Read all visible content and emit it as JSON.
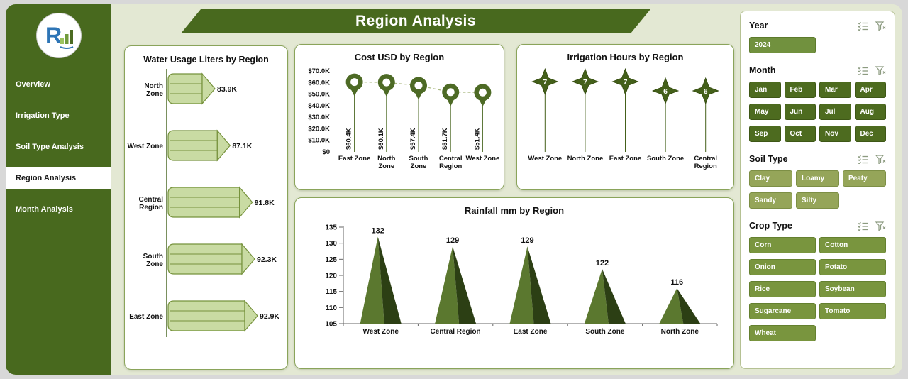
{
  "page": {
    "title": "Region Analysis"
  },
  "sidebar": {
    "items": [
      {
        "label": "Overview",
        "active": false
      },
      {
        "label": "Irrigation Type",
        "active": false
      },
      {
        "label": "Soil Type Analysis",
        "active": false
      },
      {
        "label": "Region Analysis",
        "active": true
      },
      {
        "label": "Month Analysis",
        "active": false
      }
    ]
  },
  "chart_data": [
    {
      "id": "water_usage",
      "type": "bar",
      "title": "Water Usage Liters by Region",
      "orientation": "horizontal",
      "categories": [
        "North Zone",
        "West Zone",
        "Central Region",
        "South Zone",
        "East Zone"
      ],
      "values": [
        83.9,
        87.1,
        91.8,
        92.3,
        92.9
      ],
      "labels": [
        "83.9K",
        "87.1K",
        "91.8K",
        "92.3K",
        "92.9K"
      ],
      "unit": "K liters",
      "colors": {
        "fill": "#c9dba3",
        "stroke": "#76923c",
        "axis": "#4f6b28"
      }
    },
    {
      "id": "cost",
      "type": "scatter",
      "title": "Cost USD by Region",
      "categories": [
        "East Zone",
        "North Zone",
        "South Zone",
        "Central Region",
        "West Zone"
      ],
      "values": [
        60.4,
        60.1,
        57.4,
        51.7,
        51.4
      ],
      "labels": [
        "$60.4K",
        "$60.1K",
        "$57.4K",
        "$51.7K",
        "$51.4K"
      ],
      "y_ticks": [
        "$70.0K",
        "$60.0K",
        "$50.0K",
        "$40.0K",
        "$30.0K",
        "$20.0K",
        "$10.0K",
        "$0"
      ],
      "ylim": [
        0,
        70
      ],
      "colors": {
        "pin": "#4d6a25",
        "dash": "#a8b77f"
      }
    },
    {
      "id": "irrigation_hours",
      "type": "scatter",
      "title": "Irrigation Hours by Region",
      "categories": [
        "West Zone",
        "North Zone",
        "East Zone",
        "South Zone",
        "Central Region"
      ],
      "values": [
        7,
        7,
        7,
        6,
        6
      ],
      "ylim": [
        0,
        8
      ],
      "colors": {
        "star": "#44601a",
        "star_stroke": "#33490f"
      }
    },
    {
      "id": "rainfall",
      "type": "area",
      "title": "Rainfall mm by Region",
      "categories": [
        "West Zone",
        "Central Region",
        "East Zone",
        "South Zone",
        "North Zone"
      ],
      "values": [
        132,
        129,
        129,
        122,
        116
      ],
      "y_ticks": [
        135,
        130,
        125,
        120,
        115,
        110,
        105
      ],
      "ylim": [
        105,
        135
      ],
      "colors": {
        "face_light": "#5b782f",
        "face_dark": "#2c3f14",
        "axis": "#666666"
      }
    }
  ],
  "slicers": [
    {
      "label": "Year",
      "columns": 2,
      "button_color": "#71913e",
      "button_border": "#5c7a2c",
      "options": [
        "2024"
      ]
    },
    {
      "label": "Month",
      "columns": 4,
      "button_color": "#4d6b1f",
      "button_border": "#3e5716",
      "options": [
        "Jan",
        "Feb",
        "Mar",
        "Apr",
        "May",
        "Jun",
        "Jul",
        "Aug",
        "Sep",
        "Oct",
        "Nov",
        "Dec"
      ]
    },
    {
      "label": "Soil Type",
      "columns": 3,
      "button_color": "#95a559",
      "button_border": "#7d8f45",
      "options": [
        "Clay",
        "Loamy",
        "Peaty",
        "Sandy",
        "Silty"
      ]
    },
    {
      "label": "Crop Type",
      "columns": 2,
      "button_color": "#79953e",
      "button_border": "#64802f",
      "options": [
        "Corn",
        "Cotton",
        "Onion",
        "Potato",
        "Rice",
        "Soybean",
        "Sugarcane",
        "Tomato",
        "Wheat"
      ]
    }
  ],
  "theme": {
    "primary": "#48691e",
    "canvas": "#e3e8d3",
    "panel_border": "#8aa45a"
  }
}
